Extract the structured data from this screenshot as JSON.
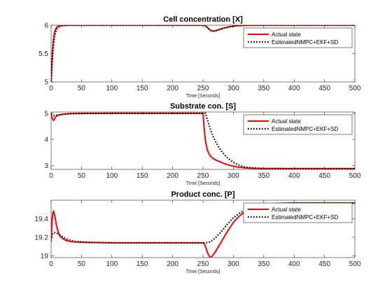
{
  "chart_data": [
    {
      "type": "line",
      "title": "Cell concentration [X]",
      "xlabel": "Time [Seconds]",
      "ylabel": "",
      "xlim": [
        0,
        500
      ],
      "ylim": [
        5,
        6
      ],
      "xticks": [
        0,
        50,
        100,
        150,
        200,
        250,
        300,
        350,
        400,
        450,
        500
      ],
      "yticks": [
        5,
        5.5,
        6
      ],
      "ytick_labels": [
        "5",
        "5.5",
        "6"
      ],
      "grid": false,
      "legend_position": "top-right",
      "series": [
        {
          "name": "Actual state",
          "color": "#ff0000",
          "style": "solid",
          "points": [
            [
              0,
              5.0
            ],
            [
              1,
              5.28
            ],
            [
              2,
              5.5
            ],
            [
              3,
              5.66
            ],
            [
              4,
              5.76
            ],
            [
              5,
              5.84
            ],
            [
              6,
              5.89
            ],
            [
              8,
              5.94
            ],
            [
              10,
              5.97
            ],
            [
              13,
              5.985
            ],
            [
              16,
              5.993
            ],
            [
              20,
              5.997
            ],
            [
              25,
              5.999
            ],
            [
              30,
              6.0
            ],
            [
              100,
              6.0
            ],
            [
              200,
              6.0
            ],
            [
              250,
              6.0
            ],
            [
              254,
              5.993
            ],
            [
              258,
              5.95
            ],
            [
              262,
              5.91
            ],
            [
              266,
              5.895
            ],
            [
              270,
              5.9
            ],
            [
              276,
              5.92
            ],
            [
              285,
              5.95
            ],
            [
              295,
              5.975
            ],
            [
              305,
              5.99
            ],
            [
              320,
              5.997
            ],
            [
              340,
              6.0
            ],
            [
              400,
              6.0
            ],
            [
              500,
              6.0
            ]
          ]
        },
        {
          "name": "EstimatedNMPC+EKF+SD",
          "color": "#000000",
          "style": "dotted",
          "points": [
            [
              0,
              5.0
            ],
            [
              1,
              5.2
            ],
            [
              2,
              5.38
            ],
            [
              3,
              5.53
            ],
            [
              4,
              5.65
            ],
            [
              5,
              5.74
            ],
            [
              6,
              5.81
            ],
            [
              8,
              5.89
            ],
            [
              10,
              5.94
            ],
            [
              13,
              5.97
            ],
            [
              16,
              5.985
            ],
            [
              20,
              5.993
            ],
            [
              25,
              5.998
            ],
            [
              30,
              6.0
            ],
            [
              100,
              6.0
            ],
            [
              200,
              6.0
            ],
            [
              250,
              6.0
            ],
            [
              254,
              5.993
            ],
            [
              258,
              5.95
            ],
            [
              262,
              5.91
            ],
            [
              266,
              5.895
            ],
            [
              270,
              5.9
            ],
            [
              276,
              5.92
            ],
            [
              285,
              5.95
            ],
            [
              295,
              5.975
            ],
            [
              305,
              5.99
            ],
            [
              320,
              5.997
            ],
            [
              340,
              6.0
            ],
            [
              400,
              6.0
            ],
            [
              500,
              6.0
            ]
          ]
        }
      ]
    },
    {
      "type": "line",
      "title": "Substrate con. [S]",
      "xlabel": "Time [Seconds]",
      "ylabel": "",
      "xlim": [
        0,
        500
      ],
      "ylim": [
        2.85,
        5.05
      ],
      "xticks": [
        0,
        50,
        100,
        150,
        200,
        250,
        300,
        350,
        400,
        450,
        500
      ],
      "yticks": [
        3,
        4,
        5
      ],
      "ytick_labels": [
        "3",
        "4",
        "5"
      ],
      "grid": false,
      "legend_position": "top-right",
      "series": [
        {
          "name": "Actual state",
          "color": "#ff0000",
          "style": "solid",
          "points": [
            [
              0,
              4.95
            ],
            [
              2,
              4.8
            ],
            [
              4,
              4.73
            ],
            [
              6,
              4.8
            ],
            [
              8,
              4.87
            ],
            [
              12,
              4.93
            ],
            [
              20,
              4.965
            ],
            [
              30,
              4.985
            ],
            [
              50,
              4.995
            ],
            [
              100,
              5.0
            ],
            [
              200,
              5.0
            ],
            [
              250,
              5.0
            ],
            [
              252,
              4.4
            ],
            [
              254,
              3.95
            ],
            [
              257,
              3.6
            ],
            [
              261,
              3.4
            ],
            [
              265,
              3.3
            ],
            [
              270,
              3.22
            ],
            [
              280,
              3.12
            ],
            [
              290,
              3.03
            ],
            [
              300,
              2.97
            ],
            [
              310,
              2.93
            ],
            [
              320,
              2.905
            ],
            [
              335,
              2.89
            ],
            [
              350,
              2.885
            ],
            [
              400,
              2.88
            ],
            [
              500,
              2.88
            ]
          ]
        },
        {
          "name": "EstimatedNMPC+EKF+SD",
          "color": "#000000",
          "style": "dotted",
          "points": [
            [
              0,
              4.97
            ],
            [
              2,
              4.93
            ],
            [
              5,
              4.91
            ],
            [
              10,
              4.93
            ],
            [
              20,
              4.965
            ],
            [
              30,
              4.985
            ],
            [
              50,
              4.995
            ],
            [
              100,
              5.0
            ],
            [
              200,
              5.0
            ],
            [
              254,
              5.0
            ],
            [
              258,
              4.7
            ],
            [
              262,
              4.4
            ],
            [
              266,
              4.15
            ],
            [
              270,
              3.95
            ],
            [
              276,
              3.7
            ],
            [
              282,
              3.5
            ],
            [
              290,
              3.3
            ],
            [
              300,
              3.12
            ],
            [
              310,
              3.0
            ],
            [
              320,
              2.94
            ],
            [
              330,
              2.91
            ],
            [
              340,
              2.895
            ],
            [
              355,
              2.885
            ],
            [
              400,
              2.88
            ],
            [
              500,
              2.88
            ]
          ]
        }
      ]
    },
    {
      "type": "line",
      "title": "Product conc. [P]",
      "xlabel": "Time [Seconds]",
      "ylabel": "",
      "xlim": [
        0,
        500
      ],
      "ylim": [
        18.98,
        19.6
      ],
      "xticks": [
        0,
        50,
        100,
        150,
        200,
        250,
        300,
        350,
        400,
        450,
        500
      ],
      "yticks": [
        19,
        19.2,
        19.4
      ],
      "ytick_labels": [
        "19",
        "19.2",
        "19.4"
      ],
      "grid": false,
      "legend_position": "top-right",
      "series": [
        {
          "name": "Actual state",
          "color": "#ff0000",
          "style": "solid",
          "points": [
            [
              0,
              19.15
            ],
            [
              1,
              19.3
            ],
            [
              2,
              19.42
            ],
            [
              3,
              19.47
            ],
            [
              4,
              19.48
            ],
            [
              5,
              19.46
            ],
            [
              7,
              19.4
            ],
            [
              9,
              19.32
            ],
            [
              12,
              19.25
            ],
            [
              15,
              19.21
            ],
            [
              20,
              19.18
            ],
            [
              25,
              19.165
            ],
            [
              35,
              19.15
            ],
            [
              50,
              19.145
            ],
            [
              100,
              19.14
            ],
            [
              200,
              19.14
            ],
            [
              250,
              19.14
            ],
            [
              253,
              19.12
            ],
            [
              256,
              19.06
            ],
            [
              259,
              19.01
            ],
            [
              262,
              18.98
            ],
            [
              266,
              19.0
            ],
            [
              272,
              19.06
            ],
            [
              280,
              19.15
            ],
            [
              290,
              19.26
            ],
            [
              300,
              19.36
            ],
            [
              310,
              19.43
            ],
            [
              320,
              19.48
            ],
            [
              335,
              19.53
            ],
            [
              350,
              19.55
            ],
            [
              370,
              19.565
            ],
            [
              400,
              19.57
            ],
            [
              500,
              19.57
            ]
          ]
        },
        {
          "name": "EstimatedNMPC+EKF+SD",
          "color": "#000000",
          "style": "dotted",
          "points": [
            [
              0,
              19.2
            ],
            [
              2,
              19.23
            ],
            [
              4,
              19.245
            ],
            [
              6,
              19.25
            ],
            [
              10,
              19.24
            ],
            [
              15,
              19.22
            ],
            [
              20,
              19.2
            ],
            [
              30,
              19.17
            ],
            [
              40,
              19.155
            ],
            [
              60,
              19.145
            ],
            [
              100,
              19.14
            ],
            [
              200,
              19.14
            ],
            [
              250,
              19.14
            ],
            [
              255,
              19.14
            ],
            [
              262,
              19.15
            ],
            [
              270,
              19.19
            ],
            [
              280,
              19.26
            ],
            [
              290,
              19.34
            ],
            [
              300,
              19.41
            ],
            [
              310,
              19.46
            ],
            [
              320,
              19.5
            ],
            [
              335,
              19.535
            ],
            [
              350,
              19.555
            ],
            [
              370,
              19.565
            ],
            [
              400,
              19.57
            ],
            [
              500,
              19.57
            ]
          ]
        }
      ]
    }
  ]
}
